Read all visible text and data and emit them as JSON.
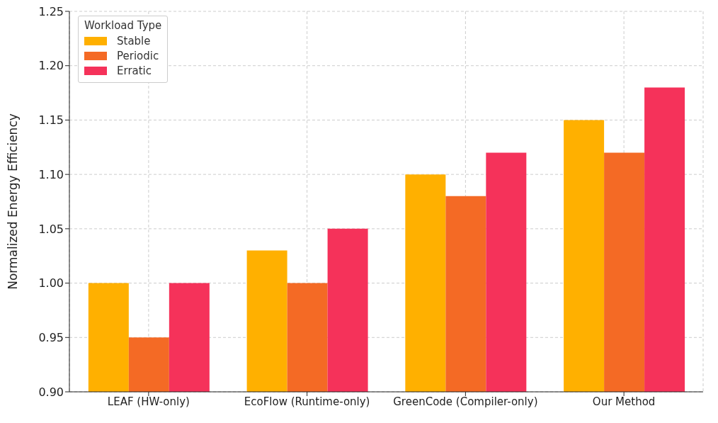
{
  "chart_data": {
    "type": "bar",
    "ylabel": "Normalized Energy Efficiency",
    "legend_title": "Workload Type",
    "categories": [
      "LEAF (HW-only)",
      "EcoFlow (Runtime-only)",
      "GreenCode (Compiler-only)",
      "Our Method"
    ],
    "series": [
      {
        "name": "Stable",
        "color": "#ffb000",
        "values": [
          1.0,
          1.03,
          1.1,
          1.15
        ]
      },
      {
        "name": "Periodic",
        "color": "#f46a25",
        "values": [
          0.95,
          1.0,
          1.08,
          1.12
        ]
      },
      {
        "name": "Erratic",
        "color": "#f5325a",
        "values": [
          1.0,
          1.05,
          1.12,
          1.18
        ]
      }
    ],
    "ylim": [
      0.9,
      1.25
    ],
    "yticks": [
      {
        "value": 0.9,
        "label": "0.90"
      },
      {
        "value": 0.95,
        "label": "0.95"
      },
      {
        "value": 1.0,
        "label": "1.00"
      },
      {
        "value": 1.05,
        "label": "1.05"
      },
      {
        "value": 1.1,
        "label": "1.10"
      },
      {
        "value": 1.15,
        "label": "1.15"
      },
      {
        "value": 1.2,
        "label": "1.20"
      },
      {
        "value": 1.25,
        "label": "1.25"
      }
    ],
    "grid": true,
    "legend": "top left"
  }
}
